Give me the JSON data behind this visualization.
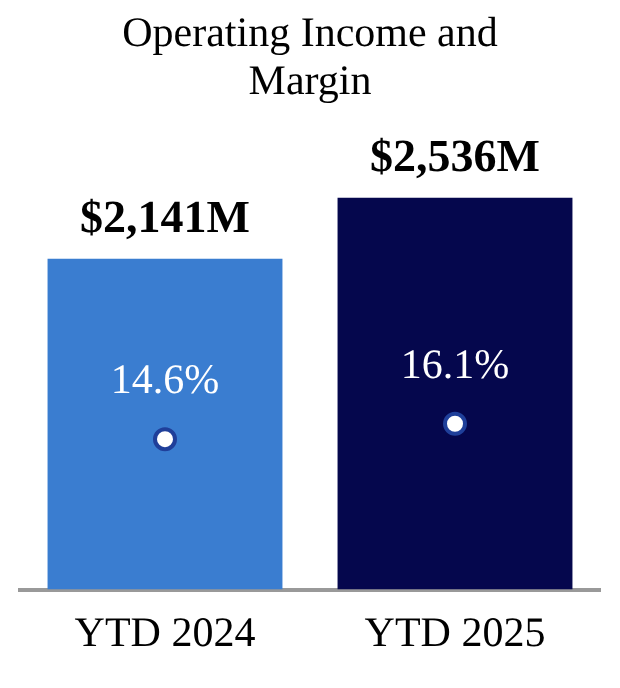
{
  "chart_data": {
    "type": "bar",
    "title": "Operating Income and Margin",
    "categories": [
      "YTD 2024",
      "YTD 2025"
    ],
    "series": [
      {
        "colors": [
          "#3a7dd0",
          "#05074d"
        ],
        "values": [
          2141,
          2536
        ],
        "value_labels": [
          "$2,141M",
          "$2,536M"
        ]
      },
      {
        "type": "scatter",
        "axis": "y2",
        "color": "#ffffff",
        "values": [
          14.6,
          16.1
        ],
        "value_labels": [
          "14.6%",
          "16.1%"
        ]
      }
    ],
    "tick_labels": "x",
    "grid": false,
    "legend": false,
    "marker": "circle"
  }
}
